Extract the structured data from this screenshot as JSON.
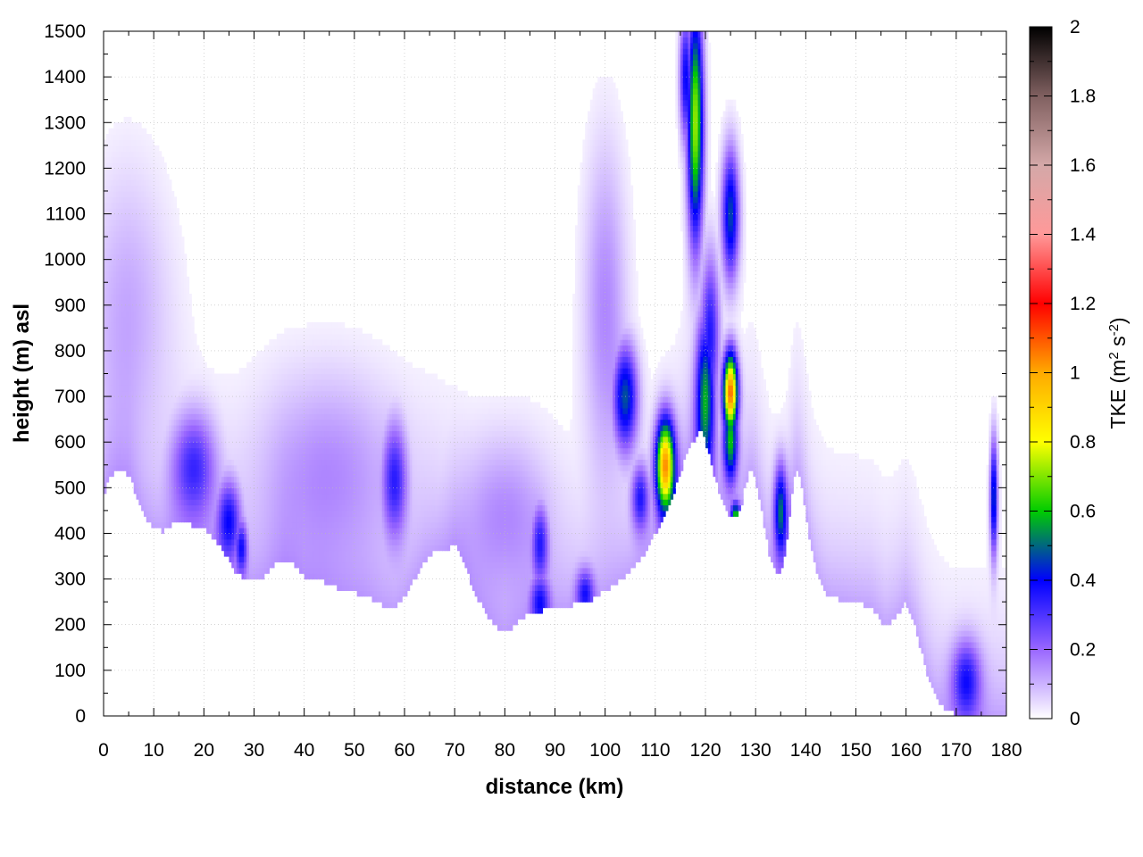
{
  "chart_data": {
    "type": "heatmap",
    "title": "",
    "xlabel": "distance (km)",
    "ylabel": "height (m) asl",
    "xlim": [
      0,
      180
    ],
    "ylim": [
      0,
      1500
    ],
    "x_ticks": [
      "0",
      "10",
      "20",
      "30",
      "40",
      "50",
      "60",
      "70",
      "80",
      "90",
      "100",
      "110",
      "120",
      "130",
      "140",
      "150",
      "160",
      "170",
      "180"
    ],
    "y_ticks": [
      "0",
      "100",
      "200",
      "300",
      "400",
      "500",
      "600",
      "700",
      "800",
      "900",
      "1000",
      "1100",
      "1200",
      "1300",
      "1400",
      "1500"
    ],
    "grid": true,
    "colorbar": {
      "label": "TKE (m",
      "label_sup1": "2",
      "label_mid": " s",
      "label_sup2": "-2",
      "label_end": ")",
      "range": [
        0,
        2
      ],
      "ticks": [
        "0",
        "0.2",
        "0.4",
        "0.6",
        "0.8",
        "1",
        "1.2",
        "1.4",
        "1.6",
        "1.8",
        "2"
      ],
      "palette": [
        {
          "v": 0.0,
          "color": "#ffffff"
        },
        {
          "v": 0.2,
          "color": "#9966ff"
        },
        {
          "v": 0.4,
          "color": "#0000ff"
        },
        {
          "v": 0.6,
          "color": "#00cc00"
        },
        {
          "v": 0.8,
          "color": "#ffff00"
        },
        {
          "v": 1.0,
          "color": "#ffaa00"
        },
        {
          "v": 1.2,
          "color": "#ff0000"
        },
        {
          "v": 1.4,
          "color": "#ff9999"
        },
        {
          "v": 1.6,
          "color": "#d4a8a8"
        },
        {
          "v": 1.8,
          "color": "#806060"
        },
        {
          "v": 2.0,
          "color": "#000000"
        }
      ]
    },
    "terrain": [
      [
        0,
        480
      ],
      [
        1,
        520
      ],
      [
        3,
        540
      ],
      [
        5,
        530
      ],
      [
        7,
        470
      ],
      [
        8,
        440
      ],
      [
        10,
        410
      ],
      [
        12,
        405
      ],
      [
        14,
        425
      ],
      [
        17,
        420
      ],
      [
        20,
        410
      ],
      [
        22,
        390
      ],
      [
        24,
        360
      ],
      [
        26,
        320
      ],
      [
        28,
        300
      ],
      [
        30,
        295
      ],
      [
        32,
        305
      ],
      [
        34,
        330
      ],
      [
        36,
        345
      ],
      [
        38,
        330
      ],
      [
        40,
        305
      ],
      [
        42,
        300
      ],
      [
        44,
        295
      ],
      [
        46,
        285
      ],
      [
        48,
        275
      ],
      [
        50,
        270
      ],
      [
        52,
        265
      ],
      [
        54,
        255
      ],
      [
        56,
        240
      ],
      [
        58,
        235
      ],
      [
        60,
        260
      ],
      [
        62,
        300
      ],
      [
        64,
        340
      ],
      [
        66,
        360
      ],
      [
        68,
        365
      ],
      [
        70,
        375
      ],
      [
        72,
        330
      ],
      [
        74,
        270
      ],
      [
        76,
        230
      ],
      [
        78,
        200
      ],
      [
        80,
        180
      ],
      [
        82,
        200
      ],
      [
        84,
        220
      ],
      [
        86,
        225
      ],
      [
        88,
        235
      ],
      [
        90,
        240
      ],
      [
        92,
        240
      ],
      [
        94,
        245
      ],
      [
        96,
        250
      ],
      [
        98,
        260
      ],
      [
        100,
        275
      ],
      [
        102,
        290
      ],
      [
        104,
        305
      ],
      [
        106,
        330
      ],
      [
        108,
        360
      ],
      [
        110,
        400
      ],
      [
        112,
        450
      ],
      [
        114,
        500
      ],
      [
        116,
        570
      ],
      [
        117,
        590
      ],
      [
        118,
        610
      ],
      [
        119,
        630
      ],
      [
        120,
        600
      ],
      [
        121,
        560
      ],
      [
        122,
        520
      ],
      [
        123,
        480
      ],
      [
        124,
        450
      ],
      [
        125,
        440
      ],
      [
        126,
        435
      ],
      [
        127,
        450
      ],
      [
        128,
        510
      ],
      [
        129,
        540
      ],
      [
        130,
        520
      ],
      [
        131,
        460
      ],
      [
        132,
        400
      ],
      [
        133,
        340
      ],
      [
        134,
        320
      ],
      [
        135,
        310
      ],
      [
        136,
        360
      ],
      [
        137,
        470
      ],
      [
        138,
        540
      ],
      [
        139,
        520
      ],
      [
        140,
        450
      ],
      [
        141,
        370
      ],
      [
        142,
        320
      ],
      [
        143,
        290
      ],
      [
        144,
        270
      ],
      [
        145,
        260
      ],
      [
        147,
        255
      ],
      [
        149,
        250
      ],
      [
        151,
        245
      ],
      [
        153,
        240
      ],
      [
        155,
        210
      ],
      [
        156,
        195
      ],
      [
        158,
        215
      ],
      [
        160,
        250
      ],
      [
        162,
        190
      ],
      [
        164,
        100
      ],
      [
        166,
        40
      ],
      [
        168,
        10
      ],
      [
        170,
        5
      ],
      [
        178,
        5
      ],
      [
        180,
        5
      ]
    ],
    "features": [
      {
        "x": 25,
        "y": 430,
        "value": 0.38,
        "sx": 1.6,
        "sy": 60
      },
      {
        "x": 18,
        "y": 550,
        "value": 0.32,
        "sx": 3.0,
        "sy": 80
      },
      {
        "x": 27.5,
        "y": 370,
        "value": 0.35,
        "sx": 0.8,
        "sy": 40
      },
      {
        "x": 58,
        "y": 520,
        "value": 0.38,
        "sx": 1.8,
        "sy": 90
      },
      {
        "x": 87,
        "y": 380,
        "value": 0.36,
        "sx": 1.2,
        "sy": 60
      },
      {
        "x": 87,
        "y": 250,
        "value": 0.33,
        "sx": 1.3,
        "sy": 40
      },
      {
        "x": 96,
        "y": 270,
        "value": 0.32,
        "sx": 1.2,
        "sy": 35
      },
      {
        "x": 104,
        "y": 700,
        "value": 0.55,
        "sx": 1.7,
        "sy": 80
      },
      {
        "x": 107,
        "y": 480,
        "value": 0.36,
        "sx": 1.2,
        "sy": 50
      },
      {
        "x": 112,
        "y": 550,
        "value": 1.15,
        "sx": 1.3,
        "sy": 70
      },
      {
        "x": 118,
        "y": 1300,
        "value": 0.85,
        "sx": 1.1,
        "sy": 180
      },
      {
        "x": 116,
        "y": 1400,
        "value": 0.45,
        "sx": 0.8,
        "sy": 100
      },
      {
        "x": 120,
        "y": 700,
        "value": 0.6,
        "sx": 1.3,
        "sy": 120
      },
      {
        "x": 121,
        "y": 850,
        "value": 0.36,
        "sx": 1.3,
        "sy": 120
      },
      {
        "x": 125,
        "y": 1100,
        "value": 0.55,
        "sx": 1.2,
        "sy": 100
      },
      {
        "x": 125,
        "y": 710,
        "value": 1.25,
        "sx": 1.0,
        "sy": 60
      },
      {
        "x": 125,
        "y": 600,
        "value": 0.62,
        "sx": 1.0,
        "sy": 60
      },
      {
        "x": 126,
        "y": 440,
        "value": 0.6,
        "sx": 0.6,
        "sy": 20
      },
      {
        "x": 135,
        "y": 450,
        "value": 0.55,
        "sx": 0.9,
        "sy": 70
      },
      {
        "x": 172,
        "y": 80,
        "value": 0.36,
        "sx": 2.0,
        "sy": 60
      },
      {
        "x": 177.5,
        "y": 480,
        "value": 0.55,
        "sx": 0.5,
        "sy": 90
      },
      {
        "x": 5,
        "y": 900,
        "value": 0.12,
        "sx": 6.0,
        "sy": 220
      },
      {
        "x": 45,
        "y": 550,
        "value": 0.15,
        "sx": 10.0,
        "sy": 150
      },
      {
        "x": 100,
        "y": 900,
        "value": 0.18,
        "sx": 3.0,
        "sy": 250
      },
      {
        "x": 80,
        "y": 450,
        "value": 0.15,
        "sx": 6.0,
        "sy": 120
      }
    ]
  }
}
